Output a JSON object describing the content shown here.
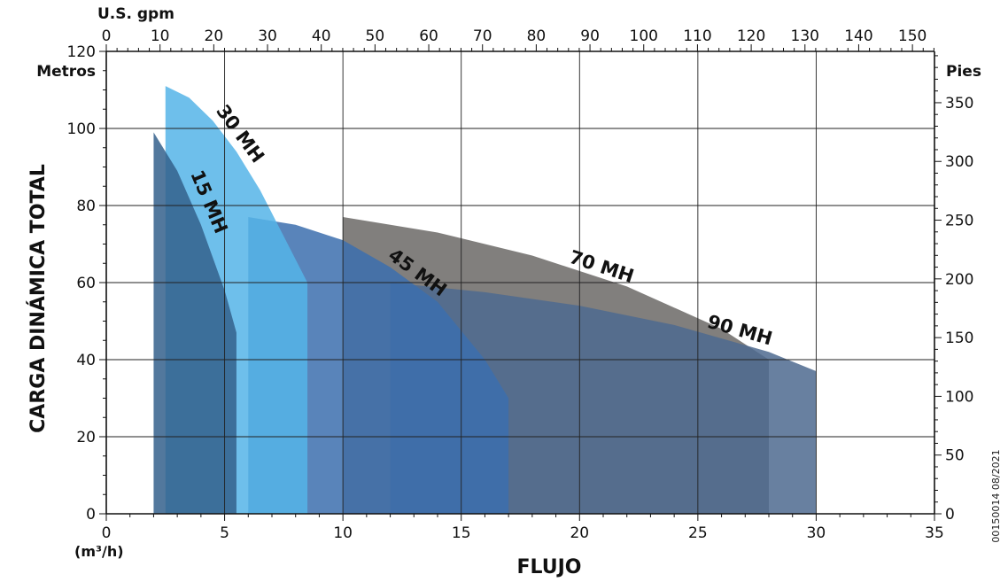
{
  "chart_data": {
    "type": "area",
    "xlabel": "FLUJO",
    "xunit": "(m³/h)",
    "ylabel": "CARGA DINÁMICA TOTAL",
    "left_axis_unit": "Metros",
    "right_axis_unit": "Pies",
    "top_axis_unit": "U.S. gpm",
    "doc_code": "00150014  08/2021",
    "xlim": [
      0,
      35
    ],
    "ylim": [
      0,
      120
    ],
    "grid": true,
    "x_ticks": [
      "0",
      "5",
      "10",
      "15",
      "20",
      "25",
      "30",
      "35"
    ],
    "x_tick_values": [
      0,
      5,
      10,
      15,
      20,
      25,
      30,
      35
    ],
    "y_ticks": [
      "0",
      "20",
      "40",
      "60",
      "80",
      "100",
      "120"
    ],
    "y_tick_values": [
      0,
      20,
      40,
      60,
      80,
      100,
      120
    ],
    "right_ticks": [
      "0",
      "50",
      "100",
      "150",
      "200",
      "250",
      "300",
      "350"
    ],
    "right_tick_values": [
      0,
      50,
      100,
      150,
      200,
      250,
      300,
      350
    ],
    "top_ticks": [
      "0",
      "10",
      "20",
      "30",
      "40",
      "50",
      "60",
      "70",
      "80",
      "90",
      "100",
      "110",
      "120",
      "130",
      "140",
      "150"
    ],
    "top_tick_values": [
      0,
      10,
      20,
      30,
      40,
      50,
      60,
      70,
      80,
      90,
      100,
      110,
      120,
      130,
      140,
      150
    ],
    "series": [
      {
        "name": "70 MH",
        "color": "#6b6866",
        "points": [
          [
            10,
            77
          ],
          [
            14,
            73
          ],
          [
            18,
            67
          ],
          [
            22,
            59
          ],
          [
            26,
            48
          ],
          [
            28,
            40
          ]
        ]
      },
      {
        "name": "90 MH",
        "color": "#4e6a8f",
        "points": [
          [
            12,
            60
          ],
          [
            16,
            57.5
          ],
          [
            20,
            54
          ],
          [
            24,
            49
          ],
          [
            28,
            42
          ],
          [
            30,
            37
          ]
        ]
      },
      {
        "name": "45 MH",
        "color": "#3c6fae",
        "points": [
          [
            6,
            77
          ],
          [
            8,
            75
          ],
          [
            10,
            71
          ],
          [
            12,
            64
          ],
          [
            14,
            55
          ],
          [
            16,
            40
          ],
          [
            17,
            30
          ]
        ]
      },
      {
        "name": "30 MH",
        "color": "#55b4e8",
        "points": [
          [
            2.5,
            111
          ],
          [
            3.5,
            108
          ],
          [
            4.5,
            102
          ],
          [
            5.5,
            94
          ],
          [
            6.5,
            84
          ],
          [
            7.5,
            72
          ],
          [
            8.5,
            60
          ]
        ]
      },
      {
        "name": "15 MH",
        "color": "#34608c",
        "points": [
          [
            2,
            99
          ],
          [
            3,
            89
          ],
          [
            4,
            75
          ],
          [
            5,
            58
          ],
          [
            5.5,
            47
          ]
        ]
      }
    ]
  }
}
